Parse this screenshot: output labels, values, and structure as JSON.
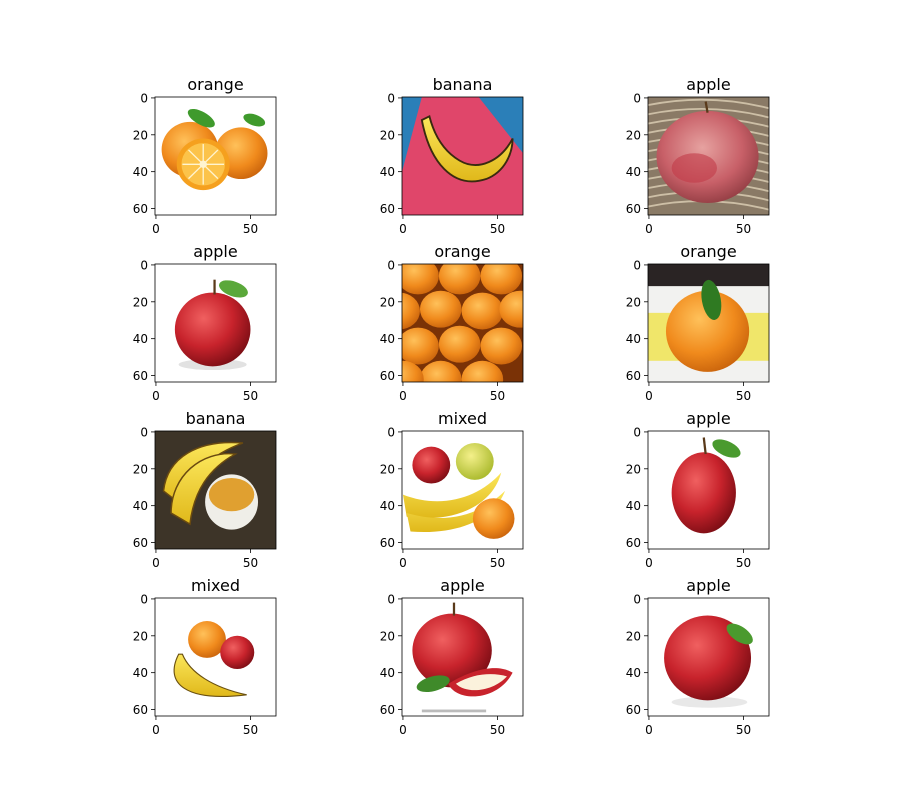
{
  "chart_data": [
    {
      "type": "image",
      "title": "orange",
      "image_kind": "orange",
      "xlim": [
        0,
        63
      ],
      "ylim": [
        63,
        0
      ],
      "xticks": [
        0,
        50
      ],
      "yticks": [
        0,
        20,
        40,
        60
      ]
    },
    {
      "type": "image",
      "title": "banana",
      "image_kind": "banana-pink",
      "xlim": [
        0,
        63
      ],
      "ylim": [
        63,
        0
      ],
      "xticks": [
        0,
        50
      ],
      "yticks": [
        0,
        20,
        40,
        60
      ]
    },
    {
      "type": "image",
      "title": "apple",
      "image_kind": "apple-basket",
      "xlim": [
        0,
        63
      ],
      "ylim": [
        63,
        0
      ],
      "xticks": [
        0,
        50
      ],
      "yticks": [
        0,
        20,
        40,
        60
      ]
    },
    {
      "type": "image",
      "title": "apple",
      "image_kind": "apple-red",
      "xlim": [
        0,
        63
      ],
      "ylim": [
        63,
        0
      ],
      "xticks": [
        0,
        50
      ],
      "yticks": [
        0,
        20,
        40,
        60
      ]
    },
    {
      "type": "image",
      "title": "orange",
      "image_kind": "orange-pile",
      "xlim": [
        0,
        63
      ],
      "ylim": [
        63,
        0
      ],
      "xticks": [
        0,
        50
      ],
      "yticks": [
        0,
        20,
        40,
        60
      ]
    },
    {
      "type": "image",
      "title": "orange",
      "image_kind": "orange-leaf",
      "xlim": [
        0,
        63
      ],
      "ylim": [
        63,
        0
      ],
      "xticks": [
        0,
        50
      ],
      "yticks": [
        0,
        20,
        40,
        60
      ]
    },
    {
      "type": "image",
      "title": "banana",
      "image_kind": "banana-bowl",
      "xlim": [
        0,
        63
      ],
      "ylim": [
        63,
        0
      ],
      "xticks": [
        0,
        50
      ],
      "yticks": [
        0,
        20,
        40,
        60
      ]
    },
    {
      "type": "image",
      "title": "mixed",
      "image_kind": "mixed-1",
      "xlim": [
        0,
        63
      ],
      "ylim": [
        63,
        0
      ],
      "xticks": [
        0,
        50
      ],
      "yticks": [
        0,
        20,
        40,
        60
      ]
    },
    {
      "type": "image",
      "title": "apple",
      "image_kind": "apple-red-2",
      "xlim": [
        0,
        63
      ],
      "ylim": [
        63,
        0
      ],
      "xticks": [
        0,
        50
      ],
      "yticks": [
        0,
        20,
        40,
        60
      ]
    },
    {
      "type": "image",
      "title": "mixed",
      "image_kind": "mixed-2",
      "xlim": [
        0,
        63
      ],
      "ylim": [
        63,
        0
      ],
      "xticks": [
        0,
        50
      ],
      "yticks": [
        0,
        20,
        40,
        60
      ]
    },
    {
      "type": "image",
      "title": "apple",
      "image_kind": "apple-slice",
      "xlim": [
        0,
        63
      ],
      "ylim": [
        63,
        0
      ],
      "xticks": [
        0,
        50
      ],
      "yticks": [
        0,
        20,
        40,
        60
      ]
    },
    {
      "type": "image",
      "title": "apple",
      "image_kind": "apple-shiny",
      "xlim": [
        0,
        63
      ],
      "ylim": [
        63,
        0
      ],
      "xticks": [
        0,
        50
      ],
      "yticks": [
        0,
        20,
        40,
        60
      ]
    }
  ],
  "colors": {
    "orange": "#f08a1c",
    "orange_light": "#f7b04a",
    "apple_red": "#c8232c",
    "apple_dark": "#8e1119",
    "banana_yellow": "#f5d62a",
    "leaf_green": "#3f9a2c",
    "axis": "#000000",
    "background": "#ffffff"
  }
}
